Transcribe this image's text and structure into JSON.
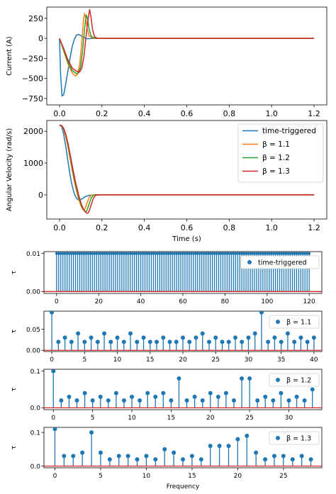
{
  "colors": {
    "time_triggered": "#1f77b4",
    "beta_1_1": "#ff7f0e",
    "beta_1_2": "#2ca02c",
    "beta_1_3": "#d62728",
    "stem": "#1f77b4"
  },
  "chart_data": [
    {
      "id": "current",
      "type": "line",
      "title": "",
      "xlabel": "",
      "ylabel": "Current (A)",
      "xlim": [
        -0.06,
        1.26
      ],
      "ylim": [
        -830,
        390
      ],
      "xticks": [
        0.0,
        0.2,
        0.4,
        0.6,
        0.8,
        1.0,
        1.2
      ],
      "xtick_labels": [
        "0.0",
        "0.2",
        "0.4",
        "0.6",
        "0.8",
        "1.0",
        "1.2"
      ],
      "yticks": [
        250,
        0,
        -250,
        -500,
        -750
      ],
      "ytick_labels": [
        "250",
        "0",
        "−250",
        "−500",
        "−750"
      ],
      "grid": false,
      "legend": null,
      "series": [
        {
          "name": "time-triggered",
          "color_key": "time_triggered",
          "points": [
            [
              0,
              0
            ],
            [
              0.005,
              -450
            ],
            [
              0.012,
              -720
            ],
            [
              0.02,
              -700
            ],
            [
              0.03,
              -560
            ],
            [
              0.04,
              -400
            ],
            [
              0.05,
              -240
            ],
            [
              0.06,
              -100
            ],
            [
              0.07,
              -10
            ],
            [
              0.08,
              40
            ],
            [
              0.09,
              50
            ],
            [
              0.1,
              35
            ],
            [
              0.11,
              15
            ],
            [
              0.13,
              -5
            ],
            [
              0.16,
              0
            ],
            [
              1.2,
              0
            ]
          ]
        },
        {
          "name": "β = 1.1",
          "color_key": "beta_1_1",
          "points": [
            [
              0,
              0
            ],
            [
              0.02,
              -160
            ],
            [
              0.04,
              -320
            ],
            [
              0.06,
              -430
            ],
            [
              0.075,
              -470
            ],
            [
              0.085,
              -450
            ],
            [
              0.095,
              -330
            ],
            [
              0.105,
              -50
            ],
            [
              0.112,
              200
            ],
            [
              0.118,
              310
            ],
            [
              0.124,
              260
            ],
            [
              0.13,
              120
            ],
            [
              0.14,
              30
            ],
            [
              0.16,
              0
            ],
            [
              1.2,
              0
            ]
          ]
        },
        {
          "name": "β = 1.2",
          "color_key": "beta_1_2",
          "points": [
            [
              0,
              0
            ],
            [
              0.02,
              -150
            ],
            [
              0.04,
              -300
            ],
            [
              0.06,
              -400
            ],
            [
              0.08,
              -440
            ],
            [
              0.09,
              -430
            ],
            [
              0.1,
              -350
            ],
            [
              0.11,
              -120
            ],
            [
              0.118,
              120
            ],
            [
              0.126,
              290
            ],
            [
              0.132,
              250
            ],
            [
              0.14,
              110
            ],
            [
              0.15,
              20
            ],
            [
              0.17,
              0
            ],
            [
              1.2,
              0
            ]
          ]
        },
        {
          "name": "β = 1.3",
          "color_key": "beta_1_3",
          "points": [
            [
              0,
              0
            ],
            [
              0.02,
              -130
            ],
            [
              0.04,
              -270
            ],
            [
              0.06,
              -370
            ],
            [
              0.08,
              -410
            ],
            [
              0.095,
              -420
            ],
            [
              0.105,
              -370
            ],
            [
              0.115,
              -230
            ],
            [
              0.125,
              20
            ],
            [
              0.135,
              250
            ],
            [
              0.142,
              360
            ],
            [
              0.148,
              270
            ],
            [
              0.156,
              110
            ],
            [
              0.165,
              20
            ],
            [
              0.18,
              0
            ],
            [
              1.2,
              0
            ]
          ]
        }
      ]
    },
    {
      "id": "velocity",
      "type": "line",
      "title": "",
      "xlabel": "Time (s)",
      "ylabel": "Angular Velocity (rad/s)",
      "xlim": [
        -0.06,
        1.26
      ],
      "ylim": [
        -760,
        2340
      ],
      "xticks": [
        0.0,
        0.2,
        0.4,
        0.6,
        0.8,
        1.0,
        1.2
      ],
      "xtick_labels": [
        "0.0",
        "0.2",
        "0.4",
        "0.6",
        "0.8",
        "1.0",
        "1.2"
      ],
      "yticks": [
        2000,
        1000,
        0
      ],
      "ytick_labels": [
        "2000",
        "1000",
        "0"
      ],
      "grid": false,
      "legend": "right",
      "series": [
        {
          "name": "time-triggered",
          "color_key": "time_triggered",
          "points": [
            [
              0,
              2200
            ],
            [
              0.01,
              2150
            ],
            [
              0.02,
              1900
            ],
            [
              0.03,
              1500
            ],
            [
              0.04,
              1050
            ],
            [
              0.05,
              620
            ],
            [
              0.06,
              270
            ],
            [
              0.07,
              30
            ],
            [
              0.08,
              -110
            ],
            [
              0.09,
              -160
            ],
            [
              0.1,
              -150
            ],
            [
              0.11,
              -110
            ],
            [
              0.12,
              -60
            ],
            [
              0.14,
              -15
            ],
            [
              0.17,
              0
            ],
            [
              1.2,
              0
            ]
          ]
        },
        {
          "name": "β = 1.1",
          "color_key": "beta_1_1",
          "points": [
            [
              0,
              2200
            ],
            [
              0.01,
              2170
            ],
            [
              0.02,
              2050
            ],
            [
              0.03,
              1820
            ],
            [
              0.04,
              1500
            ],
            [
              0.05,
              1130
            ],
            [
              0.06,
              760
            ],
            [
              0.07,
              420
            ],
            [
              0.08,
              130
            ],
            [
              0.09,
              -130
            ],
            [
              0.1,
              -330
            ],
            [
              0.11,
              -460
            ],
            [
              0.115,
              -490
            ],
            [
              0.12,
              -440
            ],
            [
              0.13,
              -250
            ],
            [
              0.14,
              -80
            ],
            [
              0.15,
              -10
            ],
            [
              0.17,
              0
            ],
            [
              1.2,
              0
            ]
          ]
        },
        {
          "name": "β = 1.2",
          "color_key": "beta_1_2",
          "points": [
            [
              0,
              2200
            ],
            [
              0.01,
              2175
            ],
            [
              0.02,
              2070
            ],
            [
              0.03,
              1860
            ],
            [
              0.04,
              1560
            ],
            [
              0.05,
              1200
            ],
            [
              0.06,
              840
            ],
            [
              0.07,
              500
            ],
            [
              0.08,
              200
            ],
            [
              0.09,
              -70
            ],
            [
              0.1,
              -280
            ],
            [
              0.11,
              -440
            ],
            [
              0.12,
              -520
            ],
            [
              0.125,
              -530
            ],
            [
              0.13,
              -480
            ],
            [
              0.14,
              -280
            ],
            [
              0.15,
              -90
            ],
            [
              0.16,
              -10
            ],
            [
              0.18,
              0
            ],
            [
              1.2,
              0
            ]
          ]
        },
        {
          "name": "β = 1.3",
          "color_key": "beta_1_3",
          "points": [
            [
              0,
              2200
            ],
            [
              0.01,
              2180
            ],
            [
              0.02,
              2090
            ],
            [
              0.03,
              1900
            ],
            [
              0.04,
              1620
            ],
            [
              0.05,
              1280
            ],
            [
              0.06,
              920
            ],
            [
              0.07,
              580
            ],
            [
              0.08,
              270
            ],
            [
              0.09,
              0
            ],
            [
              0.1,
              -230
            ],
            [
              0.11,
              -410
            ],
            [
              0.12,
              -530
            ],
            [
              0.13,
              -580
            ],
            [
              0.135,
              -570
            ],
            [
              0.14,
              -500
            ],
            [
              0.15,
              -300
            ],
            [
              0.16,
              -100
            ],
            [
              0.17,
              -15
            ],
            [
              0.19,
              0
            ],
            [
              1.2,
              0
            ]
          ]
        }
      ]
    },
    {
      "id": "tau_time_triggered",
      "type": "stem",
      "title": "",
      "xlabel": "",
      "ylabel": "τ",
      "xlim": [
        -6,
        126
      ],
      "ylim": [
        -0.0005,
        0.0105
      ],
      "xticks": [
        0,
        20,
        40,
        60,
        80,
        100,
        120
      ],
      "xtick_labels": [
        "0",
        "20",
        "40",
        "60",
        "80",
        "100",
        "120"
      ],
      "yticks": [
        0.01,
        0.0
      ],
      "ytick_labels": [
        "0.01",
        "0.00"
      ],
      "legend": "upper right",
      "series": [
        {
          "name": "time-triggered",
          "color_key": "stem",
          "constant": 0.01,
          "count": 121
        }
      ]
    },
    {
      "id": "tau_beta_1_1",
      "type": "stem",
      "title": "",
      "xlabel": "",
      "ylabel": "τ",
      "xlim": [
        -1.2,
        41.2
      ],
      "ylim": [
        -0.003,
        0.093
      ],
      "xticks": [
        0,
        5,
        10,
        15,
        20,
        25,
        30,
        35,
        40
      ],
      "xtick_labels": [
        "0",
        "5",
        "10",
        "15",
        "20",
        "25",
        "30",
        "35",
        "40"
      ],
      "yticks": [
        0.05,
        0.0
      ],
      "ytick_labels": [
        "0.05",
        "0.00"
      ],
      "legend": "upper right",
      "series": [
        {
          "name": "β = 1.1",
          "color_key": "stem",
          "values": [
            0.09,
            0.02,
            0.03,
            0.02,
            0.04,
            0.02,
            0.03,
            0.02,
            0.04,
            0.02,
            0.03,
            0.02,
            0.04,
            0.02,
            0.03,
            0.02,
            0.02,
            0.03,
            0.02,
            0.02,
            0.03,
            0.02,
            0.03,
            0.04,
            0.02,
            0.03,
            0.02,
            0.02,
            0.03,
            0.02,
            0.03,
            0.04,
            0.09,
            0.02,
            0.03,
            0.02,
            0.04,
            0.02,
            0.03,
            0.02,
            0.03
          ]
        }
      ]
    },
    {
      "id": "tau_beta_1_2",
      "type": "stem",
      "title": "",
      "xlabel": "",
      "ylabel": "τ",
      "xlim": [
        -1.2,
        34.2
      ],
      "ylim": [
        -0.005,
        0.105
      ],
      "xticks": [
        0,
        5,
        10,
        15,
        20,
        25,
        30
      ],
      "xtick_labels": [
        "0",
        "5",
        "10",
        "15",
        "20",
        "25",
        "30"
      ],
      "yticks": [
        0.1,
        0.0
      ],
      "ytick_labels": [
        "0.1",
        "0.0"
      ],
      "legend": "upper right",
      "series": [
        {
          "name": "β = 1.2",
          "color_key": "stem",
          "values": [
            0.1,
            0.02,
            0.03,
            0.02,
            0.04,
            0.02,
            0.03,
            0.02,
            0.04,
            0.02,
            0.03,
            0.02,
            0.04,
            0.03,
            0.04,
            0.02,
            0.08,
            0.02,
            0.03,
            0.02,
            0.04,
            0.03,
            0.04,
            0.02,
            0.08,
            0.08,
            0.02,
            0.03,
            0.02,
            0.04,
            0.02,
            0.03,
            0.02,
            0.05
          ]
        }
      ]
    },
    {
      "id": "tau_beta_1_3",
      "type": "stem",
      "title": "",
      "xlabel": "Frequency",
      "ylabel": "τ",
      "xlim": [
        -1.2,
        29.2
      ],
      "ylim": [
        -0.005,
        0.115
      ],
      "xticks": [
        0,
        5,
        10,
        15,
        20,
        25
      ],
      "xtick_labels": [
        "0",
        "5",
        "10",
        "15",
        "20",
        "25"
      ],
      "yticks": [
        0.1,
        0.0
      ],
      "ytick_labels": [
        "0.1",
        "0.0"
      ],
      "legend": "upper right",
      "series": [
        {
          "name": "β = 1.3",
          "color_key": "stem",
          "values": [
            0.11,
            0.03,
            0.03,
            0.04,
            0.1,
            0.04,
            0.02,
            0.03,
            0.03,
            0.02,
            0.03,
            0.02,
            0.05,
            0.04,
            0.02,
            0.03,
            0.02,
            0.06,
            0.06,
            0.06,
            0.08,
            0.09,
            0.04,
            0.02,
            0.03,
            0.03,
            0.02,
            0.03,
            0.02
          ]
        }
      ]
    }
  ]
}
